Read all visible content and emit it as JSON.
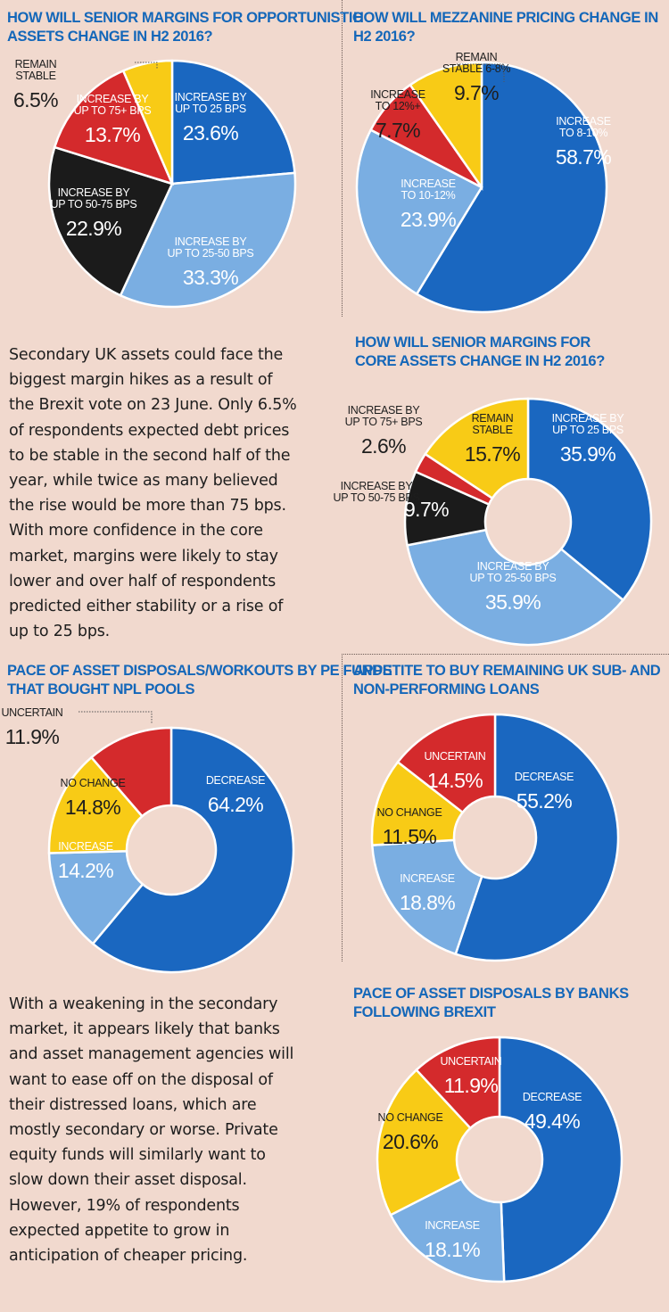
{
  "chart_data": [
    {
      "type": "pie",
      "title": "HOW WILL SENIOR MARGINS FOR OPPORTUNISTIC ASSETS CHANGE IN H2 2016?",
      "title_lines": [
        "HOW WILL SENIOR MARGINS FOR OPPORTUNISTIC",
        "ASSETS CHANGE IN H2 2016?"
      ],
      "donut": false,
      "slices": [
        {
          "label_lines": [
            "INCREASE BY",
            "UP TO 25 BPS"
          ],
          "value": 23.6,
          "value_label": "23.6%",
          "color": "#1a67c0"
        },
        {
          "label_lines": [
            "INCREASE BY",
            "UP TO 25-50 BPS"
          ],
          "value": 33.3,
          "value_label": "33.3%",
          "color": "#7aaee2"
        },
        {
          "label_lines": [
            "INCREASE BY",
            "UP TO 50-75 BPS"
          ],
          "value": 22.9,
          "value_label": "22.9%",
          "color": "#1b1b1b"
        },
        {
          "label_lines": [
            "INCREASE BY",
            "UP TO 75+ BPS"
          ],
          "value": 13.7,
          "value_label": "13.7%",
          "color": "#d42a2c"
        },
        {
          "label_lines": [
            "REMAIN",
            "STABLE"
          ],
          "value": 6.5,
          "value_label": "6.5%",
          "color": "#f8cb16"
        }
      ]
    },
    {
      "type": "pie",
      "title": "HOW WILL MEZZANINE PRICING CHANGE IN H2 2016?",
      "title_lines": [
        "HOW WILL MEZZANINE PRICING CHANGE IN H2 2016?"
      ],
      "donut": false,
      "slices": [
        {
          "label_lines": [
            "INCREASE",
            "TO 8-10%"
          ],
          "value": 58.7,
          "value_label": "58.7%",
          "color": "#1a67c0"
        },
        {
          "label_lines": [
            "INCREASE",
            "TO 10-12%"
          ],
          "value": 23.9,
          "value_label": "23.9%",
          "color": "#7aaee2"
        },
        {
          "label_lines": [
            "INCREASE",
            "TO 12%+"
          ],
          "value": 7.7,
          "value_label": "7.7%",
          "color": "#d42a2c"
        },
        {
          "label_lines": [
            "REMAIN",
            "STABLE 6-8%"
          ],
          "value": 9.7,
          "value_label": "9.7%",
          "color": "#f8cb16"
        }
      ]
    },
    {
      "type": "pie",
      "title": "HOW WILL SENIOR MARGINS FOR CORE ASSETS CHANGE IN H2 2016?",
      "title_lines": [
        "HOW WILL SENIOR MARGINS FOR",
        "CORE ASSETS CHANGE IN H2 2016?"
      ],
      "donut": true,
      "slices": [
        {
          "label_lines": [
            "INCREASE BY",
            "UP TO 25 BPS"
          ],
          "value": 35.9,
          "value_label": "35.9%",
          "color": "#1a67c0"
        },
        {
          "label_lines": [
            "INCREASE BY",
            "UP TO 25-50 BPS"
          ],
          "value": 35.9,
          "value_label": "35.9%",
          "color": "#7aaee2"
        },
        {
          "label_lines": [
            "INCREASE BY",
            "UP TO 50-75 BPS"
          ],
          "value": 9.7,
          "value_label": "9.7%",
          "color": "#1b1b1b"
        },
        {
          "label_lines": [
            "INCREASE BY",
            "UP TO 75+ BPS"
          ],
          "value": 2.6,
          "value_label": "2.6%",
          "color": "#d42a2c"
        },
        {
          "label_lines": [
            "REMAIN",
            "STABLE"
          ],
          "value": 15.7,
          "value_label": "15.7%",
          "color": "#f8cb16"
        }
      ]
    },
    {
      "type": "pie",
      "title": "PACE OF ASSET DISPOSALS/WORKOUTS BY PE FUNDS THAT BOUGHT NPL POOLS",
      "title_lines": [
        "PACE OF ASSET DISPOSALS/WORKOUTS BY PE FUNDS",
        "THAT BOUGHT NPL POOLS"
      ],
      "donut": true,
      "slices": [
        {
          "label_lines": [
            "DECREASE"
          ],
          "value": 64.2,
          "value_label": "64.2%",
          "color": "#1a67c0"
        },
        {
          "label_lines": [
            "INCREASE"
          ],
          "value": 14.2,
          "value_label": "14.2%",
          "color": "#7aaee2"
        },
        {
          "label_lines": [
            "NO CHANGE"
          ],
          "value": 14.8,
          "value_label": "14.8%",
          "color": "#f8cb16"
        },
        {
          "label_lines": [
            "UNCERTAIN"
          ],
          "value": 11.9,
          "value_label": "11.9%",
          "color": "#d42a2c"
        }
      ]
    },
    {
      "type": "pie",
      "title": "APPETITE TO BUY REMAINING UK SUB- AND NON-PERFORMING LOANS",
      "title_lines": [
        "APPETITE TO BUY REMAINING UK SUB- AND",
        "NON-PERFORMING LOANS"
      ],
      "donut": true,
      "slices": [
        {
          "label_lines": [
            "DECREASE"
          ],
          "value": 55.2,
          "value_label": "55.2%",
          "color": "#1a67c0"
        },
        {
          "label_lines": [
            "INCREASE"
          ],
          "value": 18.8,
          "value_label": "18.8%",
          "color": "#7aaee2"
        },
        {
          "label_lines": [
            "NO CHANGE"
          ],
          "value": 11.5,
          "value_label": "11.5%",
          "color": "#f8cb16"
        },
        {
          "label_lines": [
            "UNCERTAIN"
          ],
          "value": 14.5,
          "value_label": "14.5%",
          "color": "#d42a2c"
        }
      ]
    },
    {
      "type": "pie",
      "title": "PACE OF ASSET DISPOSALS BY BANKS FOLLOWING BREXIT",
      "title_lines": [
        "PACE OF ASSET DISPOSALS BY BANKS",
        "FOLLOWING BREXIT"
      ],
      "donut": true,
      "slices": [
        {
          "label_lines": [
            "DECREASE"
          ],
          "value": 49.4,
          "value_label": "49.4%",
          "color": "#1a67c0"
        },
        {
          "label_lines": [
            "INCREASE"
          ],
          "value": 18.1,
          "value_label": "18.1%",
          "color": "#7aaee2"
        },
        {
          "label_lines": [
            "NO CHANGE"
          ],
          "value": 20.6,
          "value_label": "20.6%",
          "color": "#f8cb16"
        },
        {
          "label_lines": [
            "UNCERTAIN"
          ],
          "value": 11.9,
          "value_label": "11.9%",
          "color": "#d42a2c"
        }
      ]
    }
  ],
  "text_blocks": [
    {
      "lines": [
        "Secondary UK assets could face the",
        "biggest margin hikes as a result of",
        "the Brexit vote on 23 June. Only 6.5%",
        "of respondents expected debt prices",
        "to be stable in the second half of the",
        "year, while twice as many believed",
        "the rise would be more than 75 bps.",
        "With more confidence in the core",
        "market, margins were likely to stay",
        "lower and over half of respondents",
        "predicted either stability or a rise of",
        "up to 25 bps."
      ]
    },
    {
      "lines": [
        "With a weakening in the secondary",
        "market, it appears likely that banks",
        "and asset management agencies will",
        "want to ease off on the disposal of",
        "their distressed loans, which are",
        "mostly secondary or worse. Private",
        "equity funds will similarly want to",
        "slow down their asset disposal.",
        "However, 19% of respondents",
        "expected appetite to grow in",
        "anticipation of cheaper pricing."
      ]
    }
  ]
}
